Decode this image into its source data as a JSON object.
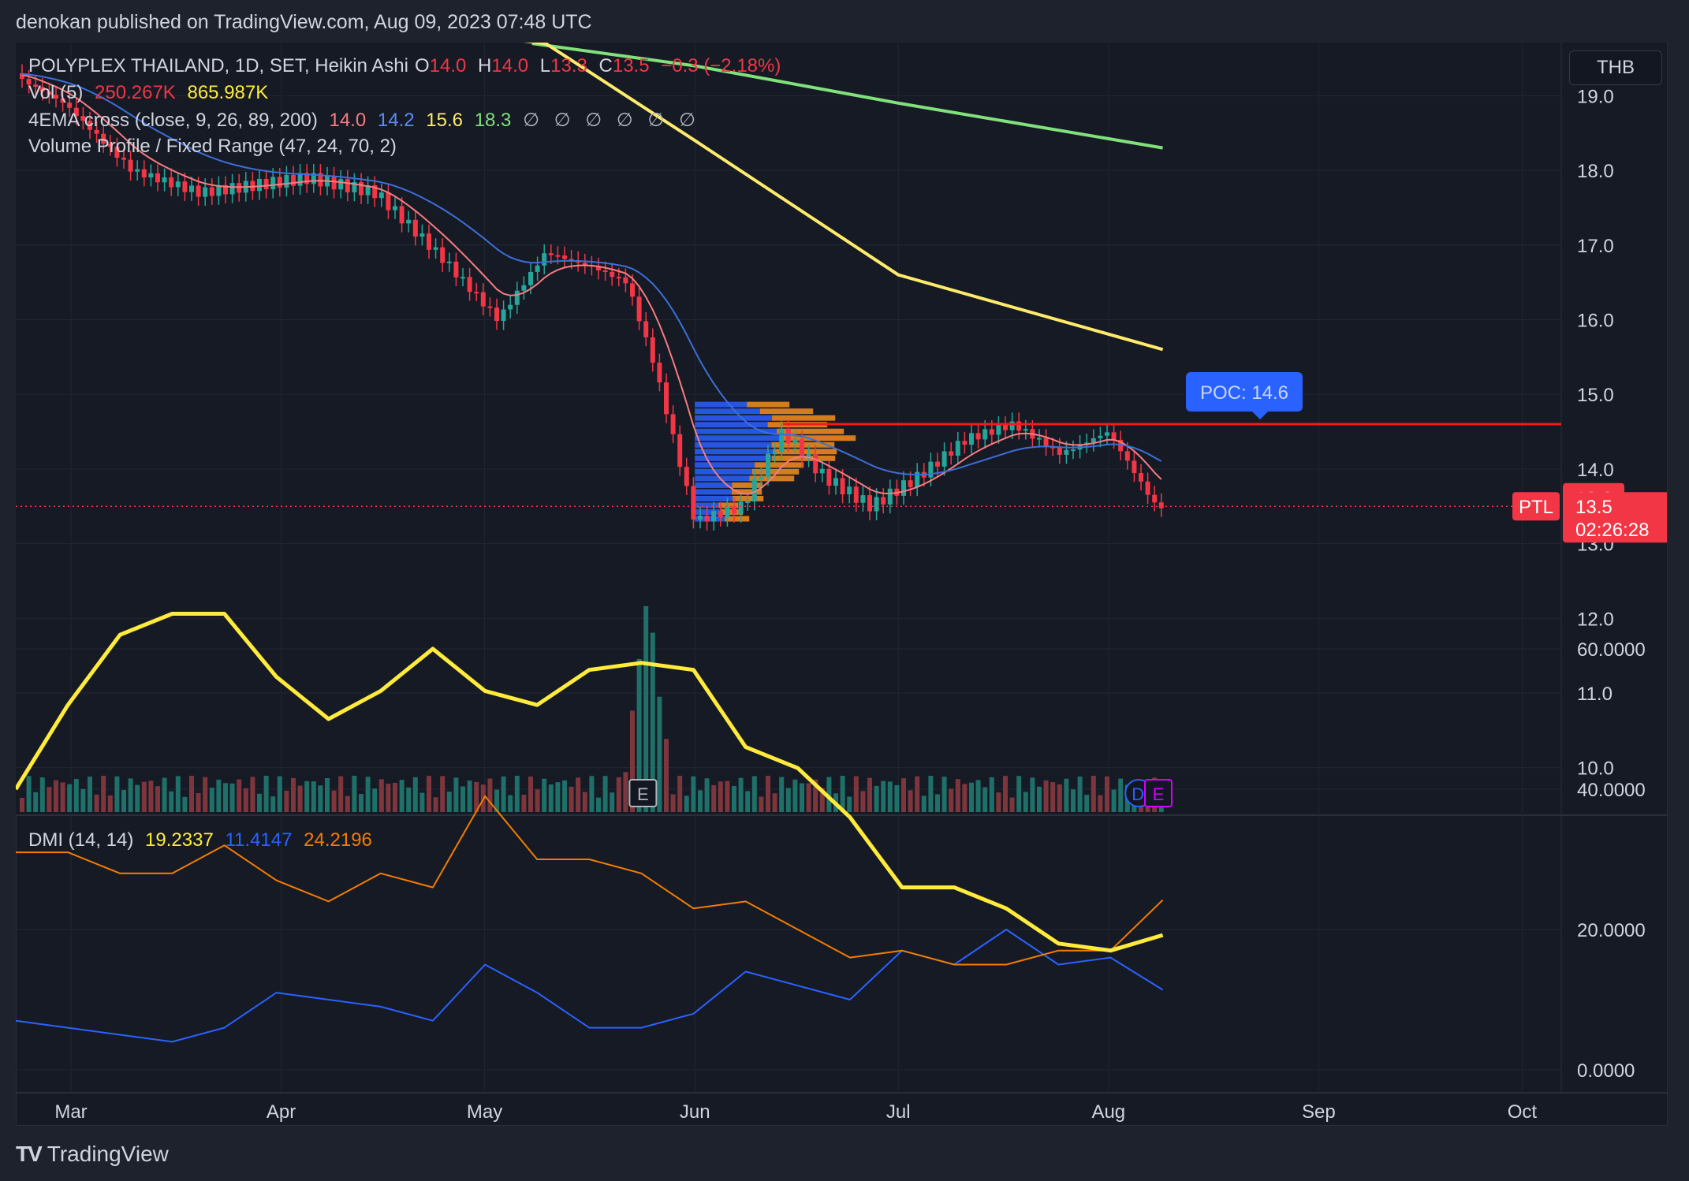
{
  "header": {
    "published_by": "denokan published on TradingView.com, Aug 09, 2023 07:48 UTC"
  },
  "legend": {
    "symbol": "POLYPLEX THAILAND, 1D, SET, Heikin Ashi",
    "open_label": "O",
    "open_value": "14.0",
    "high_label": "H",
    "high_value": "14.0",
    "low_label": "L",
    "low_value": "13.3",
    "close_label": "C",
    "close_value": "13.5",
    "change": "−0.3 (−2.18%)",
    "vol_label": "Vol (5)",
    "vol_value": "250.267K",
    "vol_ma": "865.987K",
    "ema_label": "4EMA cross (close, 9, 26, 89, 200)",
    "ema_values": [
      "14.0",
      "14.2",
      "15.6",
      "18.3"
    ],
    "ema_empty": "∅ ∅ ∅ ∅ ∅ ∅",
    "vp_label": "Volume Profile / Fixed Range (47, 24, 70, 2)"
  },
  "currency_button": "THB",
  "dmi": {
    "label": "DMI (14, 14)",
    "adx": "19.2337",
    "plus_di": "11.4147",
    "minus_di": "24.2196"
  },
  "price_axis": {
    "ticks": [
      "19.0",
      "18.0",
      "17.0",
      "16.0",
      "15.0",
      "14.0",
      "13.0",
      "12.0",
      "11.0",
      "10.0"
    ]
  },
  "dmi_axis": {
    "ticks": [
      "60.0000",
      "40.0000",
      "20.0000",
      "0.0000"
    ]
  },
  "time_axis": {
    "ticks": [
      "Mar",
      "Apr",
      "May",
      "Jun",
      "Jul",
      "Aug",
      "Sep",
      "Oct"
    ]
  },
  "labels": {
    "poc": "POC: 14.6",
    "price_tag_high": "13.6",
    "symbol_tag": "PTL",
    "last_price": "13.5",
    "countdown": "02:26:28",
    "earnings_marker_1": "E",
    "dividend_marker": "D",
    "earnings_marker_2": "E"
  },
  "brand": "TradingView",
  "colors": {
    "up": "#26a69a",
    "down": "#f23645",
    "ema9": "#f77c80",
    "ema26": "#3b6fd8",
    "ema89": "#ffeb6b",
    "ema200": "#81e17a",
    "poc": "#f21b1b",
    "adx": "#ffeb3b",
    "plus_di": "#2962ff",
    "minus_di": "#f57c00",
    "vp_blue": "#2962ff",
    "vp_orange": "#f68e1f"
  },
  "chart_data": {
    "type": "candlestick",
    "title": "POLYPLEX THAILAND, 1D, SET, Heikin Ashi",
    "x": [
      "2023-02-20",
      "2023-02-28",
      "2023-03-10",
      "2023-03-20",
      "2023-03-28",
      "2023-04-05",
      "2023-04-15",
      "2023-04-25",
      "2023-05-03",
      "2023-05-10",
      "2023-05-17",
      "2023-05-22",
      "2023-05-26",
      "2023-06-01",
      "2023-06-08",
      "2023-06-14",
      "2023-06-20",
      "2023-06-27",
      "2023-07-04",
      "2023-07-11",
      "2023-07-18",
      "2023-07-25",
      "2023-08-01",
      "2023-08-08"
    ],
    "close": [
      19.3,
      18.9,
      18.0,
      17.7,
      17.8,
      17.9,
      17.7,
      16.8,
      16.0,
      16.9,
      16.7,
      16.5,
      15.4,
      13.3,
      13.5,
      14.5,
      13.9,
      13.5,
      13.9,
      14.4,
      14.6,
      14.2,
      14.5,
      13.5
    ],
    "ema_200": [
      {
        "x": "2023-05-08",
        "y": 19.7
      },
      {
        "x": "2023-06-01",
        "y": 19.4
      },
      {
        "x": "2023-07-01",
        "y": 18.9
      },
      {
        "x": "2023-08-09",
        "y": 18.3
      }
    ],
    "ema_89": [
      {
        "x": "2023-04-20",
        "y": 19.9
      },
      {
        "x": "2023-05-10",
        "y": 19.7
      },
      {
        "x": "2023-06-01",
        "y": 18.4
      },
      {
        "x": "2023-07-01",
        "y": 16.6
      },
      {
        "x": "2023-08-09",
        "y": 15.6
      }
    ],
    "poc": 14.6,
    "last_price": 13.5,
    "price_range": [
      9.6,
      19.5
    ],
    "volume_events": [
      {
        "x": "2023-05-25",
        "note": "volume spike"
      }
    ],
    "markers": [
      {
        "x": "2023-05-24",
        "label": "E"
      },
      {
        "x": "2023-08-05",
        "label": "D"
      },
      {
        "x": "2023-08-08",
        "label": "E"
      }
    ],
    "dmi": {
      "adx": [
        40,
        52,
        62,
        65,
        65,
        56,
        50,
        54,
        60,
        54,
        52,
        57,
        58,
        57,
        46,
        43,
        36,
        26,
        26,
        23,
        18,
        17,
        19.2
      ],
      "plus_di": [
        7,
        6,
        5,
        4,
        6,
        11,
        10,
        9,
        7,
        15,
        11,
        6,
        6,
        8,
        14,
        12,
        10,
        17,
        15,
        20,
        15,
        16,
        11.4
      ],
      "minus_di": [
        31,
        31,
        28,
        28,
        32,
        27,
        24,
        28,
        26,
        39,
        30,
        30,
        28,
        23,
        24,
        20,
        16,
        17,
        15,
        15,
        17,
        17,
        24.2
      ]
    }
  }
}
